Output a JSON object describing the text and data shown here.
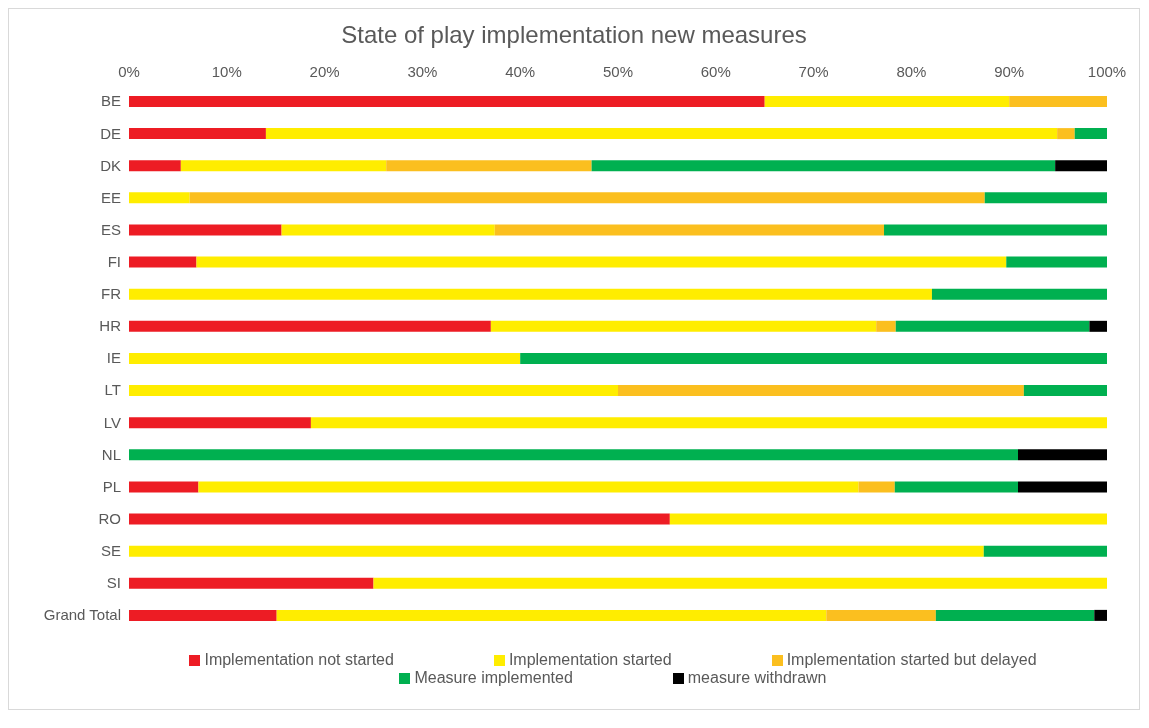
{
  "chart_data": {
    "type": "bar",
    "orientation": "horizontal",
    "stacked": true,
    "title": "State of play implementation new measures",
    "categories": [
      "BE",
      "DE",
      "DK",
      "EE",
      "ES",
      "FI",
      "FR",
      "HR",
      "IE",
      "LT",
      "LV",
      "NL",
      "PL",
      "RO",
      "SE",
      "SI",
      "Grand Total"
    ],
    "series": [
      {
        "name": "Implementation not started",
        "color": "#ed1c24",
        "values": [
          65,
          14,
          5.3,
          0,
          15.6,
          6.9,
          0,
          37,
          0,
          0,
          18.6,
          0,
          7.1,
          55.3,
          0,
          25,
          15.1
        ]
      },
      {
        "name": "Implementation started",
        "color": "#ffed00",
        "values": [
          25,
          80.9,
          21,
          6.2,
          21.8,
          82.8,
          82.1,
          39.4,
          40,
          50,
          81.4,
          0,
          67.5,
          44.7,
          87.4,
          75,
          56.2
        ]
      },
      {
        "name": "Implementation started but delayed",
        "color": "#fbbf1f",
        "values": [
          10,
          1.8,
          21,
          81.3,
          39.8,
          0,
          0,
          2,
          0,
          41.5,
          0,
          0,
          3.7,
          0,
          0,
          0,
          11.2
        ]
      },
      {
        "name": "Measure implemented",
        "color": "#00b050",
        "values": [
          0,
          3.3,
          47.4,
          12.5,
          22.8,
          10.3,
          17.9,
          19.8,
          60,
          8.5,
          0,
          90.9,
          12.6,
          0,
          12.6,
          0,
          16.2
        ]
      },
      {
        "name": "measure withdrawn",
        "color": "#000000",
        "values": [
          0,
          0,
          5.3,
          0,
          0,
          0,
          0,
          1.8,
          0,
          0,
          0,
          9.1,
          9.1,
          0,
          0,
          0,
          1.3
        ]
      }
    ],
    "xlim": [
      0,
      100
    ],
    "xticks": [
      {
        "value": 0,
        "label": "0%"
      },
      {
        "value": 10,
        "label": "10%"
      },
      {
        "value": 20,
        "label": "20%"
      },
      {
        "value": 30,
        "label": "30%"
      },
      {
        "value": 40,
        "label": "40%"
      },
      {
        "value": 50,
        "label": "50%"
      },
      {
        "value": 60,
        "label": "60%"
      },
      {
        "value": 70,
        "label": "70%"
      },
      {
        "value": 80,
        "label": "80%"
      },
      {
        "value": 90,
        "label": "90%"
      },
      {
        "value": 100,
        "label": "100%"
      }
    ],
    "legend": "bottom"
  }
}
